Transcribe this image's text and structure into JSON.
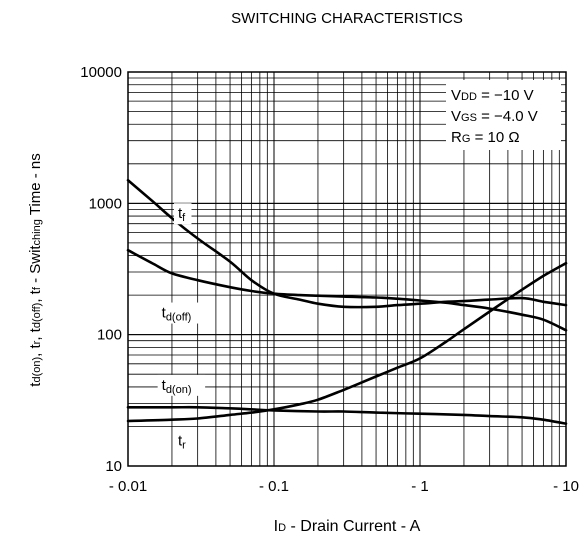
{
  "chart_data": {
    "type": "line",
    "title": "SWITCHING CHARACTERISTICS",
    "xlabel": "ID - Drain Current - A",
    "ylabel": "td(on), tr, td(off), tf - Switching Time - ns",
    "x_scale": "log",
    "y_scale": "log",
    "xlim": [
      0.01,
      10
    ],
    "ylim": [
      10,
      10000
    ],
    "x_tick_values": [
      0.01,
      0.1,
      1,
      10
    ],
    "x_tick_labels": [
      "- 0.01",
      "- 0.1",
      "- 1",
      "- 10"
    ],
    "y_tick_values": [
      10,
      100,
      1000,
      10000
    ],
    "y_tick_labels": [
      "10",
      "100",
      "1000",
      "10000"
    ],
    "grid": true,
    "conditions": [
      "VDD = −10 V",
      "VGS = −4.0 V",
      "RG = 10 Ω"
    ],
    "series": [
      {
        "name": "tf",
        "x": [
          0.01,
          0.015,
          0.02,
          0.03,
          0.05,
          0.07,
          0.1,
          0.15,
          0.2,
          0.3,
          0.5,
          0.7,
          1,
          1.5,
          2,
          3,
          5,
          7,
          10
        ],
        "y": [
          1500,
          1020,
          770,
          540,
          360,
          260,
          205,
          185,
          172,
          163,
          163,
          168,
          172,
          178,
          180,
          185,
          190,
          178,
          168
        ]
      },
      {
        "name": "td(off)",
        "x": [
          0.01,
          0.015,
          0.02,
          0.03,
          0.05,
          0.07,
          0.1,
          0.15,
          0.2,
          0.3,
          0.5,
          0.7,
          1,
          1.5,
          2,
          3,
          5,
          7,
          10
        ],
        "y": [
          440,
          345,
          293,
          260,
          230,
          215,
          205,
          200,
          198,
          195,
          192,
          188,
          182,
          175,
          168,
          158,
          142,
          130,
          108
        ]
      },
      {
        "name": "td(on)",
        "x": [
          0.01,
          0.02,
          0.03,
          0.05,
          0.07,
          0.1,
          0.2,
          0.3,
          0.5,
          1,
          2,
          3,
          5,
          7,
          10
        ],
        "y": [
          28,
          28,
          28,
          27.5,
          27,
          26.5,
          26,
          26,
          25.5,
          25,
          24.5,
          24,
          23.5,
          22.5,
          21
        ]
      },
      {
        "name": "tr",
        "x": [
          0.01,
          0.02,
          0.03,
          0.05,
          0.07,
          0.1,
          0.15,
          0.2,
          0.3,
          0.5,
          0.7,
          1,
          1.5,
          2,
          3,
          5,
          7,
          10
        ],
        "y": [
          22,
          22.5,
          23,
          24.5,
          25.5,
          27,
          29.5,
          32,
          38,
          48,
          56,
          66,
          88,
          110,
          150,
          220,
          280,
          350
        ]
      }
    ],
    "curve_labels": [
      {
        "series": "tf",
        "main": "t",
        "sub": "f",
        "x": 0.022,
        "y": 770
      },
      {
        "series": "td(off)",
        "main": "t",
        "sub": "d(off)",
        "x": 0.017,
        "y": 135
      },
      {
        "series": "td(on)",
        "main": "t",
        "sub": "d(on)",
        "x": 0.017,
        "y": 38
      },
      {
        "series": "tr",
        "main": "t",
        "sub": "r",
        "x": 0.022,
        "y": 14.3
      }
    ]
  }
}
